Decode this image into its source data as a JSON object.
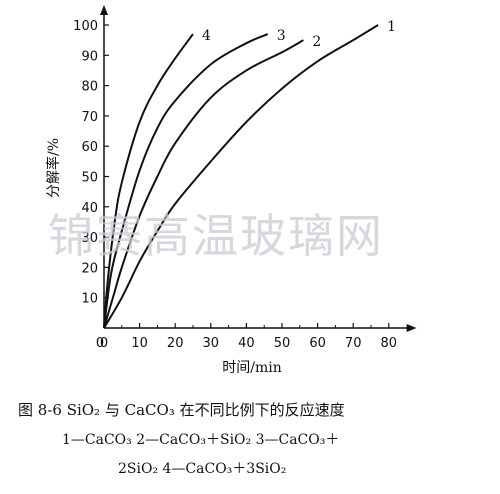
{
  "chart_data": {
    "type": "line",
    "xlabel": "时间/min",
    "ylabel": "分解率/%",
    "xlim": [
      0,
      85
    ],
    "ylim": [
      0,
      100
    ],
    "x_ticks": [
      0,
      10,
      20,
      30,
      40,
      50,
      60,
      70,
      80
    ],
    "y_ticks": [
      0,
      10,
      20,
      30,
      40,
      50,
      60,
      70,
      80,
      90,
      100
    ],
    "series": [
      {
        "name": "1",
        "x": [
          0,
          5,
          10,
          15,
          20,
          30,
          40,
          50,
          60,
          70,
          77
        ],
        "y": [
          0,
          10,
          22,
          32,
          41,
          55,
          68,
          79,
          88,
          95,
          100
        ]
      },
      {
        "name": "2",
        "x": [
          0,
          3,
          5,
          10,
          15,
          20,
          30,
          40,
          50,
          56
        ],
        "y": [
          0,
          12,
          20,
          37,
          50,
          61,
          76,
          85,
          91,
          95
        ]
      },
      {
        "name": "3",
        "x": [
          0,
          2,
          5,
          10,
          15,
          20,
          30,
          40,
          46
        ],
        "y": [
          0,
          18,
          32,
          52,
          66,
          75,
          87,
          94,
          97
        ]
      },
      {
        "name": "4",
        "x": [
          0,
          1,
          3,
          5,
          10,
          15,
          20,
          25
        ],
        "y": [
          0,
          15,
          35,
          48,
          68,
          80,
          89,
          97
        ]
      }
    ]
  },
  "watermark": "锦赛高温玻璃网",
  "caption": "图 8-6   SiO₂ 与 CaCO₃ 在不同比例下的反应速度",
  "legend_line1": "1—CaCO₃    2—CaCO₃＋SiO₂    3—CaCO₃＋",
  "legend_line2": "2SiO₂    4—CaCO₃＋3SiO₂"
}
